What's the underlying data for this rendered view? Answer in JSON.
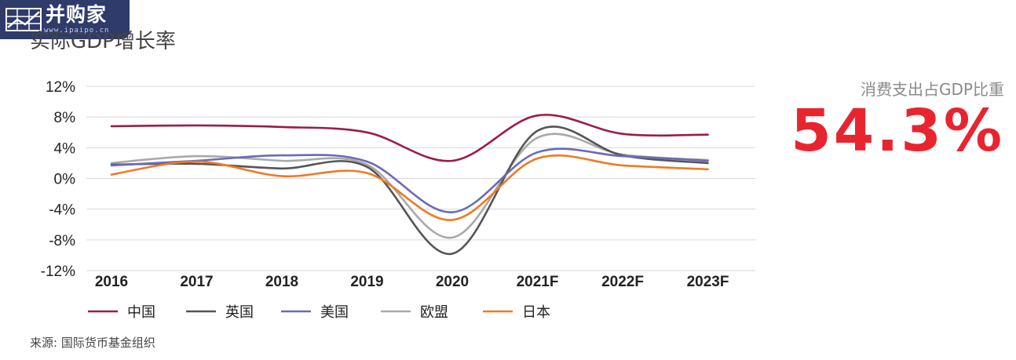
{
  "logo": {
    "name": "并购家",
    "url": "www.ipaipo.cn"
  },
  "side_stat": {
    "label": "消费支出占GDP比重",
    "value": "54.3%",
    "color": "#e8252f"
  },
  "source": "来源: 国际货币基金组织",
  "chart_data": {
    "type": "line",
    "title": "实际GDP增长率",
    "categories": [
      "2016",
      "2017",
      "2018",
      "2019",
      "2020",
      "2021F",
      "2022F",
      "2023F"
    ],
    "y_ticks": [
      "12%",
      "8%",
      "4%",
      "0%",
      "-4%",
      "-8%",
      "-12%"
    ],
    "ylim": [
      -12,
      12
    ],
    "grid": true,
    "legend_position": "bottom",
    "series": [
      {
        "name": "中国",
        "color": "#9b1b4c",
        "values": [
          6.8,
          6.9,
          6.7,
          6.0,
          2.3,
          8.2,
          5.8,
          5.7
        ]
      },
      {
        "name": "英国",
        "color": "#555555",
        "values": [
          1.8,
          1.9,
          1.3,
          1.5,
          -9.8,
          6.2,
          3.0,
          2.0
        ]
      },
      {
        "name": "美国",
        "color": "#6a6aba",
        "values": [
          1.7,
          2.3,
          3.0,
          2.2,
          -4.4,
          3.4,
          2.9,
          2.3
        ]
      },
      {
        "name": "欧盟",
        "color": "#a9a9a9",
        "values": [
          2.0,
          2.9,
          2.3,
          1.8,
          -7.7,
          5.3,
          3.1,
          2.4
        ]
      },
      {
        "name": "日本",
        "color": "#ef7922",
        "values": [
          0.5,
          2.2,
          0.3,
          0.7,
          -5.4,
          2.6,
          1.7,
          1.2
        ]
      }
    ]
  }
}
